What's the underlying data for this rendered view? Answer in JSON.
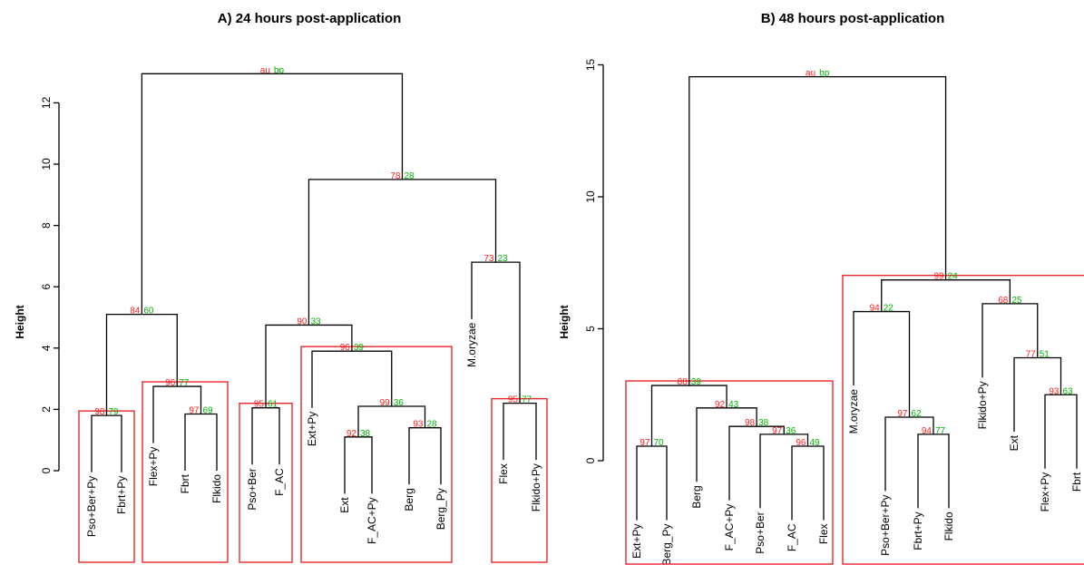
{
  "chart_data": [
    {
      "type": "dendrogram",
      "title": "A) 24 hours post-application",
      "ylabel": "Height",
      "ylim": [
        0,
        13
      ],
      "yticks": [
        0,
        2,
        4,
        6,
        8,
        10,
        12
      ],
      "leaves": [
        "Pso+Ber+Py",
        "Fbrt+Py",
        "Flex+Py",
        "Fbrt",
        "Flkido",
        "Pso+Ber",
        "F_AC",
        "Ext+Py",
        "Ext",
        "F_AC+Py",
        "Berg",
        "Berg_Py",
        "M.oryzae",
        "Flex",
        "Flkido+Py"
      ],
      "merges": [
        {
          "id": "a1",
          "left": 0,
          "right": 1,
          "height": 1.8,
          "au": "98",
          "bp": "79"
        },
        {
          "id": "a2",
          "left": 3,
          "right": 4,
          "height": 1.85,
          "au": "97",
          "bp": "69"
        },
        {
          "id": "a3",
          "left": 2,
          "right": "a2",
          "height": 2.75,
          "au": "96",
          "bp": "77"
        },
        {
          "id": "a4",
          "left": "a1",
          "right": "a3",
          "height": 5.1,
          "au": "84",
          "bp": "60"
        },
        {
          "id": "a5",
          "left": 5,
          "right": 6,
          "height": 2.05,
          "au": "95",
          "bp": "61"
        },
        {
          "id": "a6",
          "left": 8,
          "right": 9,
          "height": 1.1,
          "au": "92",
          "bp": "38"
        },
        {
          "id": "a7",
          "left": 10,
          "right": 11,
          "height": 1.4,
          "au": "93",
          "bp": "28"
        },
        {
          "id": "a8",
          "left": "a6",
          "right": "a7",
          "height": 2.1,
          "au": "99",
          "bp": "36"
        },
        {
          "id": "a9",
          "left": 7,
          "right": "a8",
          "height": 3.9,
          "au": "96",
          "bp": "39"
        },
        {
          "id": "a10",
          "left": "a5",
          "right": "a9",
          "height": 4.75,
          "au": "90",
          "bp": "33"
        },
        {
          "id": "a11",
          "left": 13,
          "right": 14,
          "height": 2.2,
          "au": "95",
          "bp": "77"
        },
        {
          "id": "a12",
          "left": 12,
          "right": "a11",
          "height": 6.8,
          "au": "73",
          "bp": "23"
        },
        {
          "id": "a13",
          "left": "a10",
          "right": "a12",
          "height": 9.5,
          "au": "78",
          "bp": "28"
        },
        {
          "id": "a14",
          "left": "a4",
          "right": "a13",
          "height": 12.95,
          "au": "au",
          "bp": "bp"
        }
      ],
      "clusters": [
        [
          0,
          1
        ],
        [
          2,
          4
        ],
        [
          5,
          6
        ],
        [
          7,
          11
        ],
        [
          13,
          14
        ]
      ]
    },
    {
      "type": "dendrogram",
      "title": "B) 48 hours post-application",
      "ylabel": "Height",
      "ylim": [
        -3.75,
        15.2
      ],
      "yticks": [
        0,
        5,
        10,
        15
      ],
      "leaves": [
        "Ext+Py",
        "Berg_Py",
        "Berg",
        "F_AC+Py",
        "Pso+Ber",
        "F_AC",
        "Flex",
        "M.oryzae",
        "Pso+Ber+Py",
        "Fbrt+Py",
        "Flkido",
        "Flkido+Py",
        "Ext",
        "Flex+Py",
        "Fbrt"
      ],
      "merges": [
        {
          "id": "b1",
          "left": 0,
          "right": 1,
          "height": 0.55,
          "au": "97",
          "bp": "70"
        },
        {
          "id": "b2",
          "left": 5,
          "right": 6,
          "height": 0.55,
          "au": "96",
          "bp": "49"
        },
        {
          "id": "b3",
          "left": 4,
          "right": "b2",
          "height": 1.0,
          "au": "97",
          "bp": "36"
        },
        {
          "id": "b4",
          "left": 3,
          "right": "b3",
          "height": 1.3,
          "au": "98",
          "bp": "38"
        },
        {
          "id": "b5",
          "left": 2,
          "right": "b4",
          "height": 2.0,
          "au": "92",
          "bp": "43"
        },
        {
          "id": "b6",
          "left": "b1",
          "right": "b5",
          "height": 2.85,
          "au": "88",
          "bp": "39"
        },
        {
          "id": "b7",
          "left": 9,
          "right": 10,
          "height": 1.0,
          "au": "94",
          "bp": "77"
        },
        {
          "id": "b8",
          "left": 8,
          "right": "b7",
          "height": 1.65,
          "au": "97",
          "bp": "62"
        },
        {
          "id": "b9",
          "left": 7,
          "right": "b8",
          "height": 5.65,
          "au": "94",
          "bp": "22"
        },
        {
          "id": "b10",
          "left": 13,
          "right": 14,
          "height": 2.5,
          "au": "93",
          "bp": "63"
        },
        {
          "id": "b11",
          "left": 12,
          "right": "b10",
          "height": 3.9,
          "au": "77",
          "bp": "51"
        },
        {
          "id": "b12",
          "left": 11,
          "right": "b11",
          "height": 5.95,
          "au": "68",
          "bp": "25"
        },
        {
          "id": "b13",
          "left": "b9",
          "right": "b12",
          "height": 6.85,
          "au": "99",
          "bp": "24"
        },
        {
          "id": "b14",
          "left": "b6",
          "right": "b13",
          "height": 14.55,
          "au": "au",
          "bp": "bp"
        }
      ],
      "clusters": [
        [
          0,
          6
        ],
        [
          7,
          14
        ]
      ]
    }
  ]
}
